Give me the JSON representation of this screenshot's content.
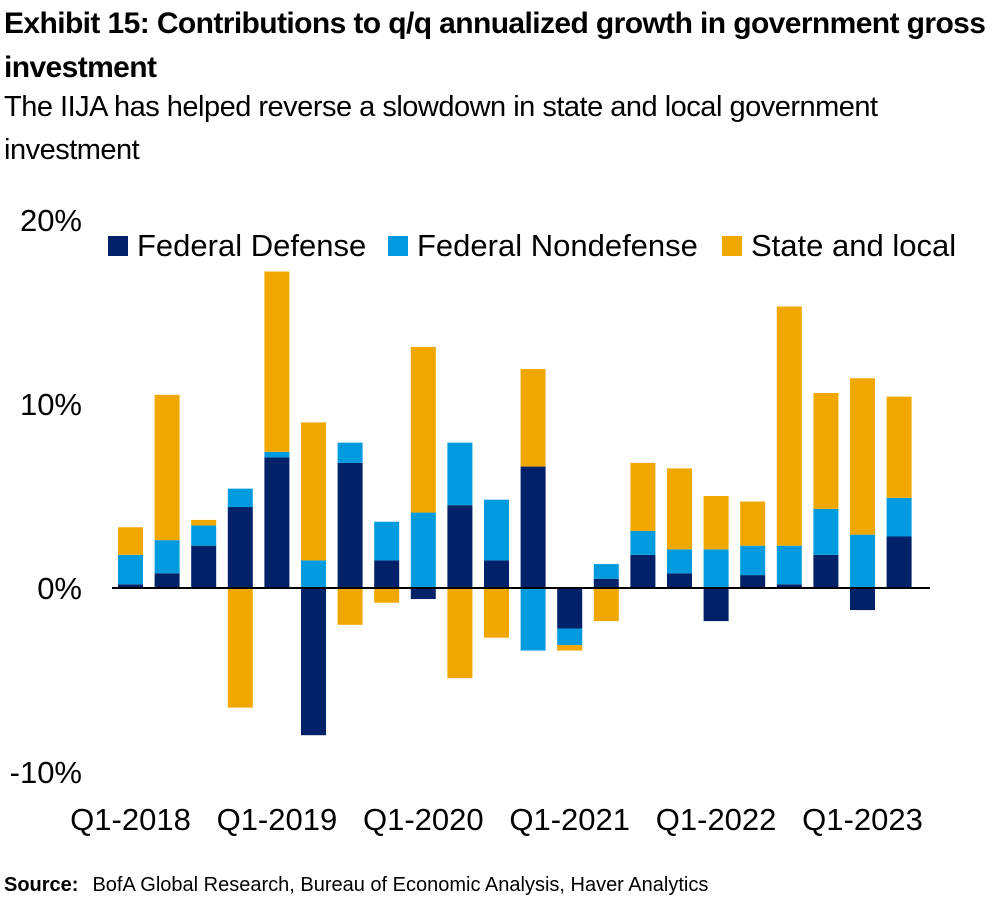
{
  "title": "Exhibit 15: Contributions to q/q annualized growth in government gross investment",
  "subtitle": "The IIJA has helped reverse a slowdown in state and local government investment",
  "source": {
    "label": "Source:",
    "text": "BofA Global Research, Bureau of Economic  Analysis, Haver Analytics"
  },
  "chart_data": {
    "type": "bar",
    "stacked": true,
    "categories": [
      "Q1-2018",
      "Q2-2018",
      "Q3-2018",
      "Q4-2018",
      "Q1-2019",
      "Q2-2019",
      "Q3-2019",
      "Q4-2019",
      "Q1-2020",
      "Q2-2020",
      "Q3-2020",
      "Q4-2020",
      "Q1-2021",
      "Q2-2021",
      "Q3-2021",
      "Q4-2021",
      "Q1-2022",
      "Q2-2022",
      "Q3-2022",
      "Q4-2022",
      "Q1-2023",
      "Q2-2023",
      "Q3-2023"
    ],
    "x_tick_labels": [
      "Q1-2018",
      "Q1-2019",
      "Q1-2020",
      "Q1-2021",
      "Q1-2022",
      "Q1-2023"
    ],
    "series": [
      {
        "name": "Federal Defense",
        "color": "#012169",
        "values": [
          0.2,
          0.8,
          2.3,
          4.4,
          7.1,
          -8.0,
          6.8,
          1.5,
          -0.6,
          4.5,
          1.5,
          6.6,
          -2.2,
          0.5,
          1.8,
          0.8,
          -1.8,
          0.7,
          0.2,
          1.8,
          -1.2,
          2.8,
          0
        ]
      },
      {
        "name": "Federal Nondefense",
        "color": "#009ADE",
        "values": [
          1.6,
          1.8,
          1.1,
          1.0,
          0.3,
          1.5,
          1.1,
          2.1,
          4.1,
          3.4,
          3.3,
          -3.4,
          -0.9,
          0.8,
          1.3,
          1.3,
          2.1,
          1.6,
          2.1,
          2.5,
          2.9,
          2.1,
          0
        ]
      },
      {
        "name": "State and local",
        "color": "#F0A800",
        "values": [
          1.5,
          7.9,
          0.3,
          -6.5,
          9.8,
          7.5,
          -2.0,
          -0.8,
          9.0,
          -4.9,
          -2.7,
          5.3,
          -0.3,
          -1.8,
          3.7,
          4.4,
          2.9,
          2.4,
          13.0,
          6.3,
          8.5,
          5.5,
          0
        ]
      }
    ],
    "ylim": [
      -10,
      20
    ],
    "yticks": [
      -10,
      0,
      10,
      20
    ],
    "ytick_labels": [
      "-10%",
      "0%",
      "10%",
      "20%"
    ],
    "legend_position": "top",
    "grid": false
  }
}
